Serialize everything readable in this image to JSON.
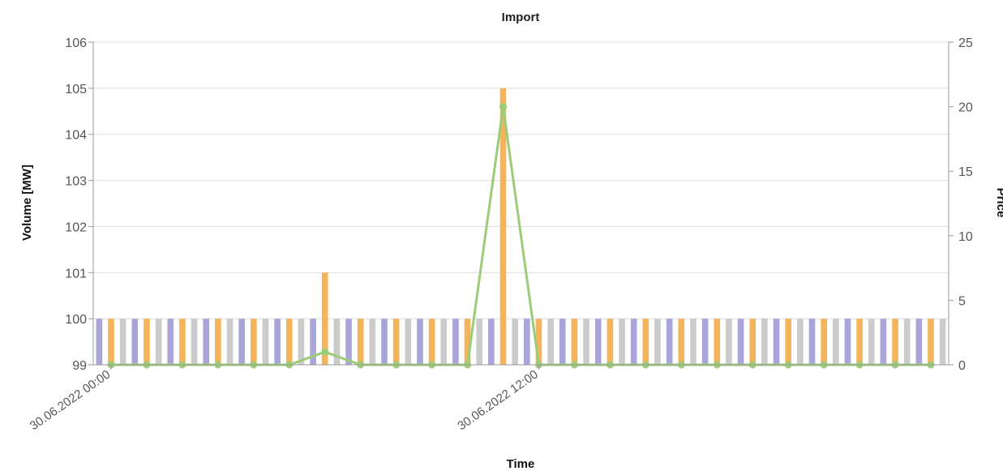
{
  "chart_data": {
    "type": "bar",
    "title": "Import",
    "xlabel": "Time",
    "ylabel": "Volume [MW]",
    "y2label": "Price",
    "ylim": [
      99,
      106
    ],
    "y2lim": [
      0,
      25
    ],
    "yticks": [
      "99",
      "100",
      "101",
      "102",
      "103",
      "104",
      "105",
      "106"
    ],
    "y2ticks": [
      "0",
      "5",
      "10",
      "15",
      "20",
      "25"
    ],
    "xticks": [
      "30.06.2022 00:00",
      "30.06.2022 12:00"
    ],
    "grid": true,
    "series": [
      {
        "color": "#a9a5d8",
        "axis": "left",
        "values": [
          100,
          100,
          100,
          100,
          100,
          100,
          100,
          100,
          100,
          100,
          100,
          100,
          100,
          100,
          100,
          100,
          100,
          100,
          100,
          100,
          100,
          100,
          100,
          100
        ]
      },
      {
        "color": "#f5b45a",
        "axis": "left",
        "values": [
          100,
          100,
          100,
          100,
          100,
          100,
          101,
          100,
          100,
          100,
          100,
          105,
          100,
          100,
          100,
          100,
          100,
          100,
          100,
          100,
          100,
          100,
          100,
          100
        ]
      },
      {
        "color": "#cbcbcb",
        "axis": "left",
        "values": [
          100,
          100,
          100,
          100,
          100,
          100,
          100,
          100,
          100,
          100,
          100,
          100,
          100,
          100,
          100,
          100,
          100,
          100,
          100,
          100,
          100,
          100,
          100,
          100
        ]
      },
      {
        "type": "line",
        "color": "#9ccc78",
        "axis": "right",
        "values": [
          0,
          0,
          0,
          0,
          0,
          0,
          1,
          0,
          0,
          0,
          0,
          20,
          0,
          0,
          0,
          0,
          0,
          0,
          0,
          0,
          0,
          0,
          0,
          0
        ]
      }
    ]
  }
}
